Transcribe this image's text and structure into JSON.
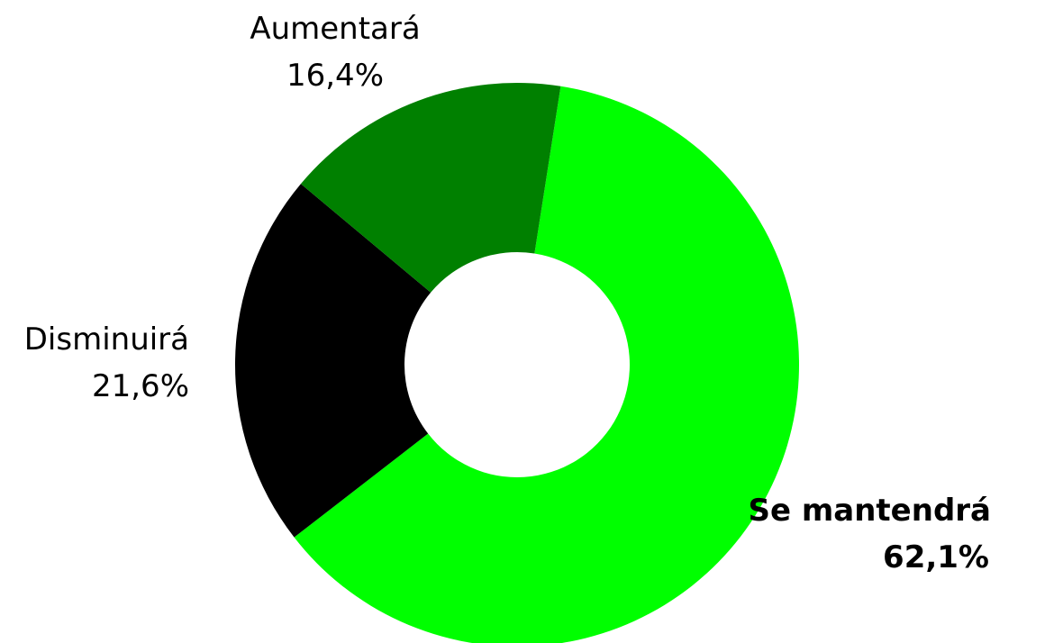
{
  "chart_data": {
    "type": "donut",
    "categories": [
      "Se mantendrá",
      "Disminuirá",
      "Aumentará"
    ],
    "values": [
      62.1,
      21.6,
      16.4
    ],
    "value_labels": [
      "62,1%",
      "21,6%",
      "16,4%"
    ],
    "colors": [
      "#00ff00",
      "#000000",
      "#008000"
    ]
  }
}
